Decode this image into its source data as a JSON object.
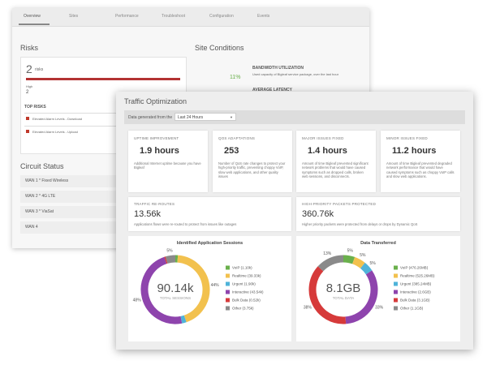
{
  "background": {
    "tabs": [
      "Overview",
      "Sites",
      "Performance",
      "Troubleshoot",
      "Configuration",
      "Events"
    ],
    "risks": {
      "title": "Risks",
      "count": "2",
      "count_unit": "risks",
      "level": "High",
      "level_count": "2",
      "top_title": "TOP RISKS",
      "items": [
        "Elevated Alarm Levels - Download",
        "Elevated Alarm Levels - Upload"
      ]
    },
    "site_conditions": {
      "title": "Site Conditions",
      "metric": "BANDWIDTH UTILIZATION",
      "description": "Used capacity of Bigleaf service package, over the last hour",
      "value": "11%",
      "next_metric": "AVERAGE LATENCY"
    },
    "circuit_status": {
      "title": "Circuit Status",
      "circuits": [
        "WAN 1 * Fixed Wireless",
        "WAN 2 * 4G LTE",
        "WAN 3 * ViaSat",
        "WAN 4"
      ]
    }
  },
  "panel": {
    "title": "Traffic Optimization",
    "filter_label": "Data generated from the",
    "filter_value": "Last 24 Hours",
    "cards": [
      {
        "title": "UPTIME IMPROVEMENT",
        "value": "1.9 hours",
        "description": "Additional Internet uptime because you have Bigleaf"
      },
      {
        "title": "QOS ADAPTATIONS",
        "value": "253",
        "description": "Number of QoS rate changes to protect your high-priority traffic, preventing choppy VoIP, slow web applications, and other quality issues"
      },
      {
        "title": "MAJOR ISSUES FIXED",
        "value": "1.4 hours",
        "description": "Amount of time Bigleaf prevented significant network problems that would have caused symptoms such as dropped calls, broken web sessions, and disconnects."
      },
      {
        "title": "MINOR ISSUES FIXED",
        "value": "11.2 hours",
        "description": "Amount of time Bigleaf prevented degraded network performance that would have caused symptoms such as choppy VoIP calls and slow web applications."
      }
    ],
    "wide_cards": [
      {
        "title": "TRAFFIC RE-ROUTES",
        "value": "13.56k",
        "description": "Applications flows were re-routed to protect from issues like outages"
      },
      {
        "title": "HIGH-PRIORITY PACKETS PROTECTED",
        "value": "360.76k",
        "description": "Higher priority packets were protected from delays or drops by Dynamic QoS"
      }
    ],
    "donuts": [
      {
        "title": "Identified Application Sessions",
        "total": "90.14k",
        "total_label": "TOTAL SESSIONS",
        "segments": [
          {
            "name": "VoIP (1.10k)",
            "color": "#6ab04c",
            "value": 1.2
          },
          {
            "name": "Realtime (39.33k)",
            "color": "#f2c14e",
            "value": 43.6,
            "label": "44%"
          },
          {
            "name": "Urgent (1.90k)",
            "color": "#4fb3d9",
            "value": 2.1
          },
          {
            "name": "Interactive (43.54k)",
            "color": "#8e44ad",
            "value": 47.9,
            "label": "48%"
          },
          {
            "name": "Bulk Data (0.52k)",
            "color": "#d63a3a",
            "value": 0.6
          },
          {
            "name": "Other (3.75k)",
            "color": "#8a8a8a",
            "value": 4.6,
            "label": "5%"
          }
        ]
      },
      {
        "title": "Data Transferred",
        "total": "8.1GB",
        "total_label": "TOTAL DATA",
        "segments": [
          {
            "name": "VoIP (476.26MB)",
            "color": "#6ab04c",
            "value": 5.4,
            "label": "5%"
          },
          {
            "name": "Realtime (525.26MB)",
            "color": "#f2c14e",
            "value": 5.4,
            "label": "5%"
          },
          {
            "name": "Urgent (385.24MB)",
            "color": "#4fb3d9",
            "value": 4.8,
            "label": "5%"
          },
          {
            "name": "Interactive (2.6GB)",
            "color": "#8e44ad",
            "value": 33.2,
            "label": "33%"
          },
          {
            "name": "Bulk Data (3.1GB)",
            "color": "#d63a3a",
            "value": 38.0,
            "label": "38%"
          },
          {
            "name": "Other (1.1GB)",
            "color": "#8a8a8a",
            "value": 13.2,
            "label": "13%"
          }
        ]
      }
    ]
  }
}
